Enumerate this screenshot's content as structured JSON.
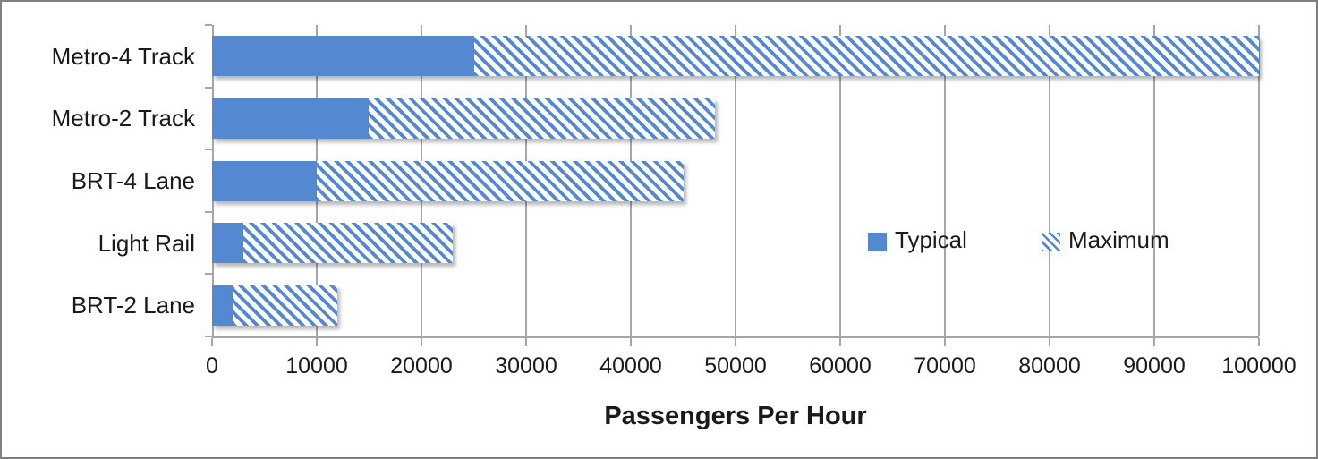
{
  "chart_data": {
    "type": "bar",
    "orientation": "horizontal",
    "xlabel": "Passengers Per Hour",
    "categories": [
      "Metro-4 Track",
      "Metro-2 Track",
      "BRT-4 Lane",
      "Light Rail",
      "BRT-2 Lane"
    ],
    "series": [
      {
        "name": "Typical",
        "pattern": "solid",
        "values": [
          25000,
          15000,
          10000,
          3000,
          2000
        ]
      },
      {
        "name": "Maximum",
        "pattern": "diagonal-hatch",
        "values": [
          100000,
          48000,
          45000,
          23000,
          12000
        ]
      }
    ],
    "xlim": [
      0,
      100000
    ],
    "x_tick_labels": [
      "0",
      "10000",
      "20000",
      "30000",
      "40000",
      "50000",
      "60000",
      "70000",
      "80000",
      "90000",
      "100000"
    ],
    "grid": true,
    "legend": {
      "position": "inside-right",
      "entries": [
        "Typical",
        "Maximum"
      ]
    },
    "colors": {
      "accent": "#5488D0",
      "grid": "#A6A6A6",
      "axis": "#A6A6A6",
      "text": "#1A1A1A",
      "frame": "#7F7F7F",
      "background": "#FFFFFF"
    }
  }
}
